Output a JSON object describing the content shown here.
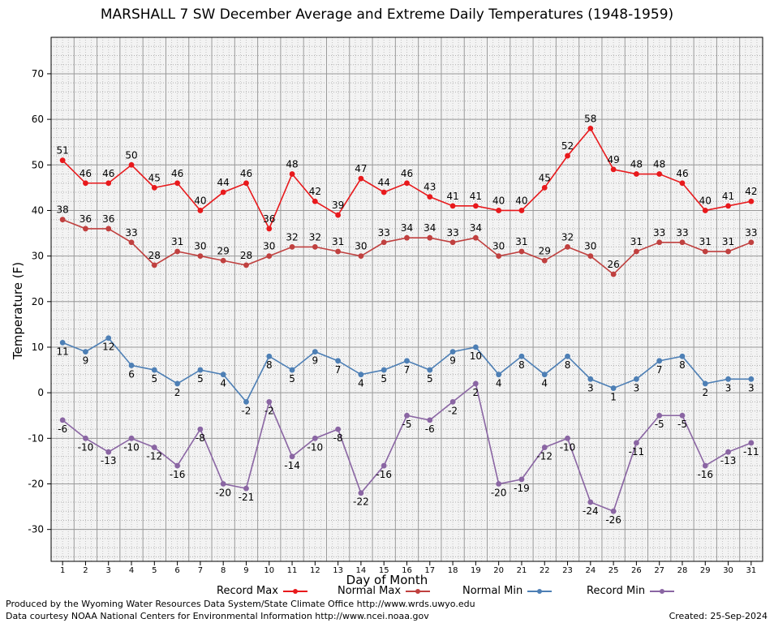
{
  "chart_data": {
    "type": "line",
    "title": "MARSHALL 7 SW December Average and Extreme Daily Temperatures (1948-1959)",
    "xlabel": "Day of Month",
    "ylabel": "Temperature (F)",
    "x": [
      1,
      2,
      3,
      4,
      5,
      6,
      7,
      8,
      9,
      10,
      11,
      12,
      13,
      14,
      15,
      16,
      17,
      18,
      19,
      20,
      21,
      22,
      23,
      24,
      25,
      26,
      27,
      28,
      29,
      30,
      31
    ],
    "ylim": [
      -37,
      78
    ],
    "yticks": [
      -30,
      -20,
      -10,
      0,
      10,
      20,
      30,
      40,
      50,
      60,
      70
    ],
    "grid": true,
    "legend_position": "bottom",
    "series": [
      {
        "name": "Record Max",
        "color": "#e8191c",
        "values": [
          51,
          46,
          46,
          50,
          45,
          46,
          40,
          44,
          46,
          36,
          48,
          42,
          39,
          47,
          44,
          46,
          43,
          41,
          41,
          40,
          40,
          45,
          52,
          58,
          49,
          48,
          48,
          46,
          40,
          41,
          42
        ]
      },
      {
        "name": "Normal Max",
        "color": "#c0403f",
        "values": [
          38,
          36,
          36,
          33,
          28,
          31,
          30,
          29,
          28,
          30,
          32,
          32,
          31,
          30,
          33,
          34,
          34,
          33,
          34,
          30,
          31,
          29,
          32,
          30,
          26,
          31,
          33,
          33,
          31,
          31,
          33
        ]
      },
      {
        "name": "Normal Min",
        "color": "#4d7fb5",
        "values": [
          11,
          9,
          12,
          6,
          5,
          2,
          5,
          4,
          -2,
          8,
          5,
          9,
          7,
          4,
          5,
          7,
          5,
          9,
          10,
          4,
          8,
          4,
          8,
          3,
          1,
          3,
          7,
          8,
          2,
          3,
          3
        ]
      },
      {
        "name": "Record Min",
        "color": "#8a65a3",
        "values": [
          -6,
          -10,
          -13,
          -10,
          -12,
          -16,
          -8,
          -20,
          -21,
          -2,
          -14,
          -10,
          -8,
          -22,
          -16,
          -5,
          -6,
          -2,
          2,
          -20,
          -19,
          -12,
          -10,
          -24,
          -26,
          -11,
          -5,
          -5,
          -16,
          -13,
          -11
        ]
      }
    ]
  },
  "footer": {
    "credit_1": "Produced by the Wyoming Water Resources Data System/State Climate Office http://www.wrds.uwyo.edu",
    "credit_2": "Data courtesy NOAA National Centers for Environmental Information http://www.ncei.noaa.gov",
    "created": "Created: 25-Sep-2024"
  }
}
